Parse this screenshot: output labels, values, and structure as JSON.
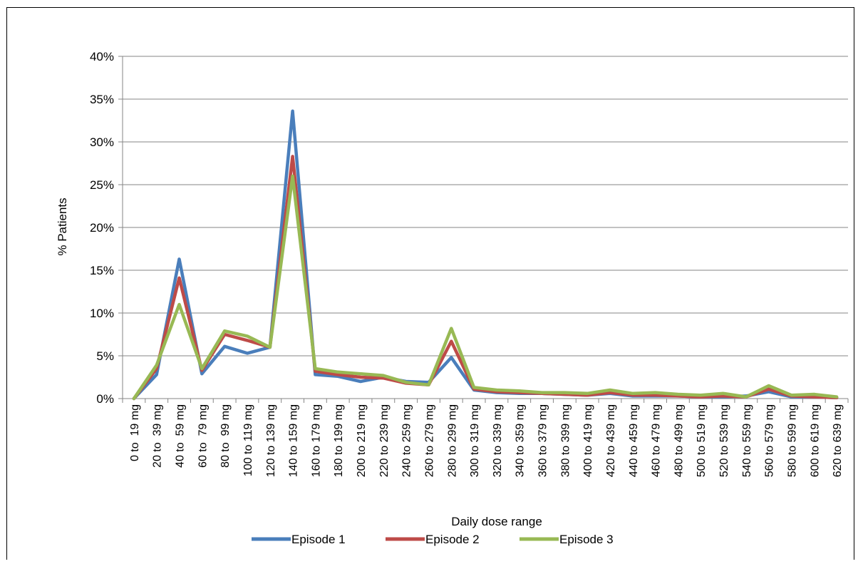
{
  "chart_data": {
    "type": "line",
    "title": "",
    "xlabel": "Daily dose range",
    "ylabel": "% Patients",
    "ylim": [
      0,
      40
    ],
    "yticks": [
      "0%",
      "5%",
      "10%",
      "15%",
      "20%",
      "25%",
      "30%",
      "35%",
      "40%"
    ],
    "grid": true,
    "legend_position": "bottom",
    "categories": [
      "0 to  19 mg",
      "20 to  39 mg",
      "40 to  59 mg",
      "60 to  79 mg",
      "80 to  99 mg",
      "100 to 119 mg",
      "120 to 139 mg",
      "140 to 159 mg",
      "160 to 179 mg",
      "180 to 199 mg",
      "200 to 219 mg",
      "220 to 239 mg",
      "240 to 259 mg",
      "260 to 279 mg",
      "280 to 299 mg",
      "300 to 319 mg",
      "320 to 339 mg",
      "340 to 359 mg",
      "360 to 379 mg",
      "380 to 399 mg",
      "400 to 419 mg",
      "420 to 439 mg",
      "440 to 459 mg",
      "460 to 479 mg",
      "480 to 499 mg",
      "500 to 519 mg",
      "520 to 539 mg",
      "540 to 559 mg",
      "560 to 579 mg",
      "580 to 599 mg",
      "600 to 619 mg",
      "620 to 639 mg"
    ],
    "series": [
      {
        "name": "Episode 1",
        "color": "#4a7ebb",
        "values": [
          0,
          2.8,
          16.3,
          2.9,
          6.1,
          5.3,
          6.0,
          33.6,
          2.8,
          2.6,
          2.0,
          2.5,
          2.0,
          1.9,
          4.8,
          1.0,
          0.7,
          0.6,
          0.6,
          0.5,
          0.4,
          0.6,
          0.3,
          0.3,
          0.3,
          0.2,
          0.2,
          0.3,
          0.8,
          0.2,
          0.2,
          0.1
        ]
      },
      {
        "name": "Episode 2",
        "color": "#be4b48",
        "values": [
          0,
          3.5,
          14.1,
          3.3,
          7.5,
          6.8,
          6.0,
          28.3,
          3.2,
          2.8,
          2.5,
          2.4,
          1.8,
          1.6,
          6.7,
          1.1,
          0.8,
          0.7,
          0.6,
          0.5,
          0.4,
          0.7,
          0.4,
          0.4,
          0.3,
          0.2,
          0.3,
          0.2,
          1.1,
          0.3,
          0.2,
          0.1
        ]
      },
      {
        "name": "Episode 3",
        "color": "#98b954",
        "values": [
          0,
          3.9,
          11.0,
          3.5,
          7.9,
          7.3,
          6.0,
          26.0,
          3.5,
          3.1,
          2.9,
          2.7,
          1.9,
          1.6,
          8.2,
          1.3,
          1.0,
          0.9,
          0.7,
          0.7,
          0.6,
          1.0,
          0.6,
          0.7,
          0.5,
          0.4,
          0.6,
          0.2,
          1.5,
          0.4,
          0.5,
          0.2
        ]
      }
    ]
  }
}
